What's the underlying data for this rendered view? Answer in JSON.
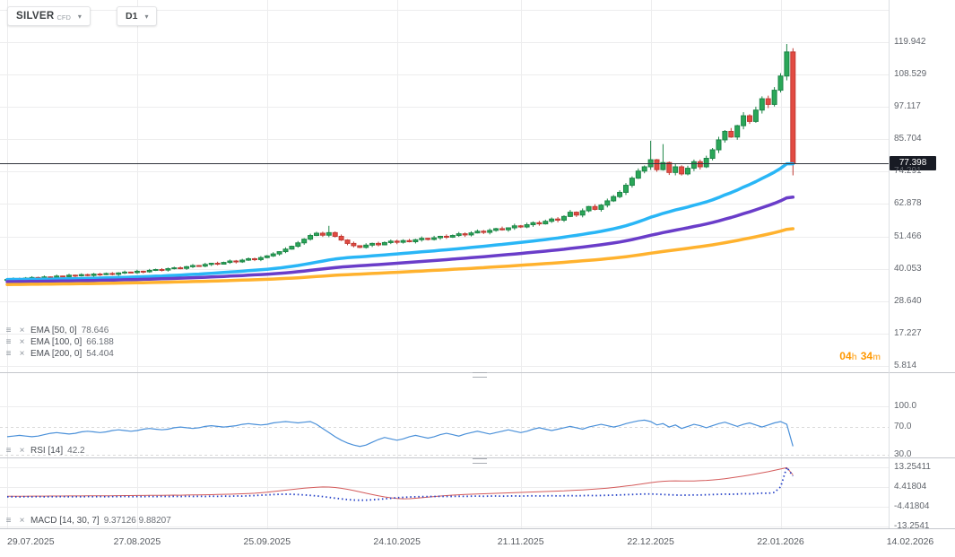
{
  "toolbar": {
    "symbol": "SILVER",
    "symbol_suffix": "CFD",
    "timeframe": "D1"
  },
  "price_axis": {
    "labels": [
      "119.942",
      "108.529",
      "97.117",
      "85.704",
      "74.291",
      "62.878",
      "51.466",
      "40.053",
      "28.640",
      "17.227",
      "5.814"
    ],
    "current_price": "77.398",
    "current_price_value": 77.398,
    "badge_color": "#181b24"
  },
  "time_axis": {
    "labels": [
      "29.07.2025",
      "27.08.2025",
      "25.09.2025",
      "24.10.2025",
      "21.11.2025",
      "22.12.2025",
      "22.01.2026",
      "14.02.2026"
    ]
  },
  "indicators": {
    "ema": [
      {
        "label": "EMA [50, 0]",
        "value": "78.646"
      },
      {
        "label": "EMA [100, 0]",
        "value": "66.188"
      },
      {
        "label": "EMA [200, 0]",
        "value": "54.404"
      }
    ],
    "rsi": {
      "label": "RSI [14]",
      "value": "42.2",
      "axis": [
        "100.0",
        "70.0",
        "30.0"
      ]
    },
    "macd": {
      "label": "MACD [14, 30, 7]",
      "value": "9.37126 9.88207",
      "axis": [
        "13.25411",
        "4.41804",
        "-4.41804",
        "-13.2541"
      ]
    }
  },
  "countdown": {
    "hours": "04",
    "hours_unit": "h",
    "minutes": "34",
    "minutes_unit": "m"
  },
  "chart_data": {
    "type": "candlestick",
    "title": "SILVER CFD, D1",
    "ylim": [
      5.814,
      119.942
    ],
    "grid": true,
    "tick_indices": [
      0,
      21,
      42,
      63,
      83,
      104,
      125
    ],
    "open_first": 36.0,
    "candles_close": [
      36.3,
      36.6,
      36.2,
      36.8,
      37.0,
      36.7,
      37.2,
      37.0,
      37.5,
      37.3,
      37.8,
      37.6,
      38.0,
      37.7,
      38.2,
      38.0,
      38.4,
      38.1,
      38.6,
      38.9,
      38.7,
      39.2,
      39.0,
      39.5,
      39.8,
      39.6,
      40.1,
      40.4,
      40.2,
      40.8,
      41.2,
      41.0,
      41.6,
      42.0,
      41.7,
      42.3,
      42.8,
      42.5,
      43.1,
      43.6,
      43.3,
      44.0,
      44.6,
      45.3,
      46.1,
      47.0,
      48.0,
      49.2,
      50.5,
      51.8,
      52.6,
      51.9,
      52.8,
      51.5,
      50.2,
      49.0,
      48.2,
      47.6,
      48.4,
      49.0,
      48.5,
      49.3,
      49.8,
      49.4,
      50.0,
      49.6,
      50.3,
      50.8,
      50.4,
      51.0,
      51.5,
      51.2,
      51.8,
      52.4,
      52.0,
      52.7,
      53.3,
      52.9,
      53.6,
      54.2,
      53.8,
      54.5,
      55.2,
      54.8,
      55.6,
      56.3,
      55.9,
      56.8,
      57.6,
      57.2,
      58.5,
      60.0,
      59.0,
      60.5,
      62.0,
      61.0,
      62.5,
      64.0,
      65.5,
      67.0,
      69.5,
      72.0,
      74.5,
      76.0,
      78.5,
      75.0,
      77.5,
      74.0,
      76.0,
      73.5,
      75.5,
      77.8,
      76.0,
      79.0,
      82.0,
      85.5,
      88.5,
      86.5,
      90.5,
      94.0,
      92.0,
      96.0,
      100.0,
      98.0,
      103.0,
      108.0,
      116.5,
      77.398
    ],
    "wick_overrides": {
      "52": {
        "high": 55.2
      },
      "104": {
        "high": 85.2
      },
      "106": {
        "high": 84.0
      },
      "126": {
        "high": 119.3
      },
      "127": {
        "high": 117.8,
        "low": 73.0
      }
    },
    "colors": {
      "up": "#1d8547",
      "up_fill": "#2aa758",
      "down": "#c03a33",
      "down_fill": "#e34b42",
      "grid": "#ededee",
      "separator": "#c4c7cc",
      "price_line": "#30343b"
    },
    "emas": [
      {
        "period": 50,
        "color": "#29b6f6",
        "render_period": 50,
        "seed_offset": 0,
        "end_value": 78.646
      },
      {
        "period": 100,
        "color": "#6a3dc9",
        "render_period": 100,
        "seed_offset": -0.8,
        "end_value": 66.188
      },
      {
        "period": 200,
        "color": "#ffb22e",
        "render_period": 200,
        "seed_offset": -1.8,
        "end_value": 54.404
      }
    ],
    "rsi": {
      "color": "#4a90d9",
      "levels": [
        100,
        70,
        30
      ],
      "last_value": 42.2,
      "series": [
        56,
        57,
        58,
        57,
        56,
        57,
        59,
        61,
        62,
        61,
        60,
        61,
        63,
        64,
        63,
        62,
        63,
        65,
        66,
        65,
        64,
        65,
        67,
        68,
        67,
        66,
        67,
        69,
        70,
        69,
        68,
        69,
        71,
        72,
        71,
        70,
        71,
        72,
        74,
        75,
        74,
        73,
        74,
        76,
        77,
        78,
        77,
        76,
        77,
        78,
        74,
        68,
        62,
        56,
        51,
        47,
        44,
        42,
        44,
        48,
        52,
        55,
        53,
        51,
        53,
        56,
        58,
        56,
        54,
        56,
        59,
        61,
        59,
        57,
        60,
        62,
        64,
        62,
        60,
        62,
        64,
        66,
        64,
        62,
        64,
        67,
        69,
        67,
        65,
        67,
        69,
        71,
        69,
        67,
        70,
        72,
        74,
        72,
        70,
        72,
        75,
        77,
        79,
        80,
        78,
        73,
        75,
        70,
        73,
        68,
        71,
        74,
        72,
        69,
        72,
        75,
        77,
        74,
        71,
        74,
        76,
        73,
        70,
        73,
        76,
        78,
        74,
        42.2
      ]
    },
    "macd": {
      "signal_color": "#d45b5b",
      "main_color": "#2743c8",
      "last_values": [
        9.37126,
        9.88207
      ],
      "signal_series": [
        0.3,
        0.32,
        0.34,
        0.33,
        0.36,
        0.38,
        0.37,
        0.4,
        0.42,
        0.41,
        0.44,
        0.46,
        0.45,
        0.48,
        0.5,
        0.52,
        0.51,
        0.54,
        0.57,
        0.6,
        0.62,
        0.65,
        0.63,
        0.67,
        0.7,
        0.73,
        0.76,
        0.8,
        0.78,
        0.83,
        0.88,
        0.92,
        0.97,
        1.02,
        1.08,
        1.15,
        1.22,
        1.3,
        1.4,
        1.52,
        1.65,
        1.85,
        2.1,
        2.4,
        2.7,
        3.0,
        3.3,
        3.6,
        3.9,
        4.15,
        4.35,
        4.45,
        4.4,
        4.2,
        3.85,
        3.4,
        2.85,
        2.25,
        1.65,
        1.05,
        0.5,
        0.0,
        -0.4,
        -0.7,
        -0.85,
        -0.8,
        -0.6,
        -0.35,
        -0.1,
        0.15,
        0.4,
        0.6,
        0.8,
        0.95,
        1.1,
        1.2,
        1.3,
        1.4,
        1.5,
        1.6,
        1.7,
        1.8,
        1.9,
        2.0,
        2.1,
        2.2,
        2.3,
        2.4,
        2.5,
        2.6,
        2.7,
        2.85,
        3.0,
        3.15,
        3.3,
        3.5,
        3.7,
        3.95,
        4.2,
        4.5,
        4.85,
        5.2,
        5.6,
        6.0,
        6.4,
        6.75,
        7.0,
        7.15,
        7.2,
        7.15,
        7.1,
        7.15,
        7.25,
        7.4,
        7.6,
        7.85,
        8.15,
        8.5,
        8.9,
        9.35,
        9.8,
        10.3,
        10.8,
        11.3,
        11.9,
        12.5,
        13.1,
        9.88
      ],
      "main_series": [
        0.05,
        0.1,
        0.02,
        0.12,
        0.06,
        0.14,
        0.05,
        0.12,
        0.08,
        0.15,
        0.06,
        0.14,
        0.08,
        0.16,
        0.1,
        0.18,
        0.08,
        0.16,
        0.12,
        0.2,
        0.1,
        0.18,
        0.12,
        0.22,
        0.14,
        0.24,
        0.16,
        0.26,
        0.18,
        0.28,
        0.2,
        0.3,
        0.22,
        0.34,
        0.26,
        0.38,
        0.3,
        0.44,
        0.36,
        0.5,
        0.6,
        0.75,
        0.9,
        1.05,
        1.15,
        1.2,
        1.15,
        1.05,
        0.9,
        0.7,
        0.45,
        0.15,
        -0.2,
        -0.55,
        -0.9,
        -1.2,
        -1.4,
        -1.5,
        -1.45,
        -1.3,
        -1.1,
        -0.85,
        -0.6,
        -0.38,
        -0.2,
        -0.05,
        0.05,
        0.12,
        0.18,
        0.22,
        0.25,
        0.22,
        0.26,
        0.3,
        0.26,
        0.32,
        0.36,
        0.3,
        0.36,
        0.4,
        0.34,
        0.4,
        0.44,
        0.38,
        0.44,
        0.48,
        0.42,
        0.48,
        0.52,
        0.46,
        0.52,
        0.58,
        0.5,
        0.58,
        0.64,
        0.56,
        0.64,
        0.72,
        0.8,
        0.9,
        1.0,
        1.1,
        1.2,
        1.28,
        1.34,
        1.2,
        1.1,
        0.95,
        0.85,
        0.75,
        0.8,
        0.9,
        0.85,
        0.95,
        1.05,
        1.15,
        1.25,
        1.15,
        1.3,
        1.45,
        1.35,
        1.5,
        1.7,
        1.6,
        2.0,
        4.5,
        13.25,
        9.37
      ]
    }
  }
}
